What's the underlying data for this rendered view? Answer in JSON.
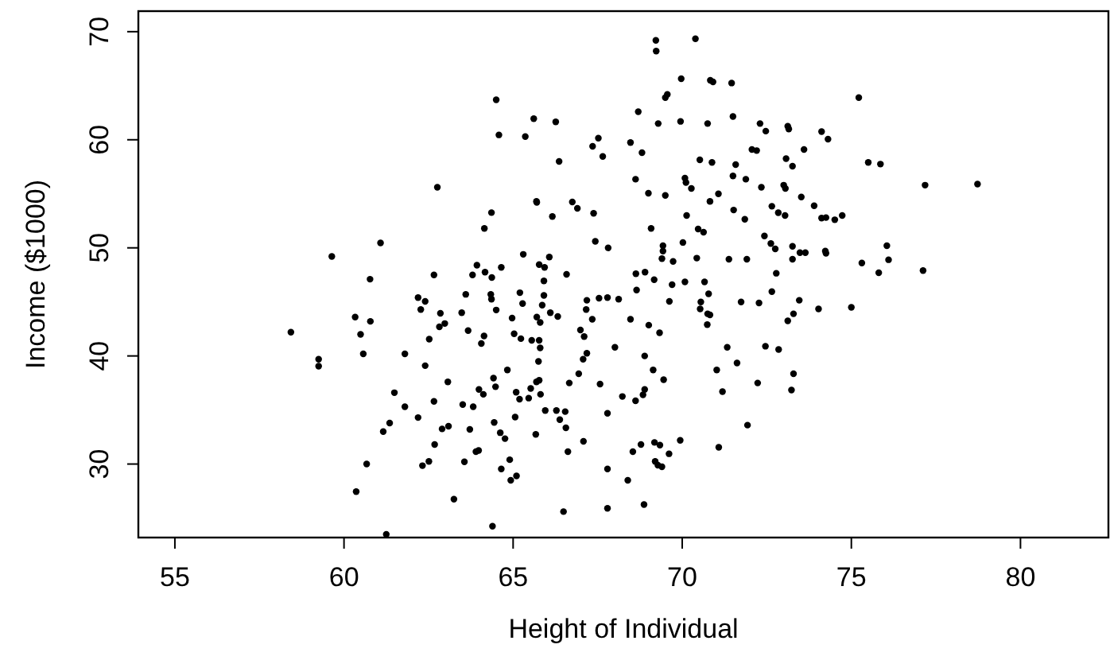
{
  "chart_data": {
    "type": "scatter",
    "xlabel": "Height of Individual",
    "ylabel": "Income ($1000)",
    "xlim": [
      53.92,
      82.6
    ],
    "ylim": [
      23.2,
      71.9
    ],
    "xticks": [
      55,
      60,
      65,
      70,
      75,
      80
    ],
    "yticks": [
      30,
      40,
      50,
      60,
      70
    ],
    "grid": false,
    "marker": "circle",
    "series": [
      {
        "color": "#000000",
        "x": [
          58.43,
          59.25,
          59.25,
          59.64,
          61.08,
          60.77,
          60.33,
          60.78,
          60.49,
          60.57,
          61.8,
          61.49,
          61.8,
          61.16,
          61.35,
          60.67,
          60.36,
          61.25,
          62.76,
          64.36,
          64.15,
          62.66,
          65.3,
          63.93,
          63.8,
          64.17,
          64.37,
          64.65,
          63.6,
          64.34,
          64.36,
          65.2,
          65.28,
          64.5,
          62.19,
          62.4,
          62.27,
          62.85,
          63.48,
          62.82,
          62.98,
          63.67,
          64.14,
          64.06,
          64.97,
          65.03,
          65.23,
          62.52,
          62.4,
          63.07,
          64.42,
          64.83,
          63.99,
          64.12,
          64.48,
          65.09,
          65.19,
          62.66,
          63.51,
          63.82,
          62.19,
          62.9,
          63.09,
          63.72,
          64.44,
          64.62,
          64.76,
          65.06,
          62.68,
          63.98,
          63.9,
          62.51,
          62.32,
          63.56,
          64.65,
          64.9,
          64.93,
          65.1,
          63.25,
          64.39,
          69.22,
          69.23,
          70.39,
          69.97,
          70.83,
          70.91,
          71.46,
          64.5,
          69.56,
          69.5,
          68.7,
          65.61,
          66.26,
          64.58,
          65.36,
          69.29,
          69.95,
          70.75,
          71.5,
          72.3,
          72.47,
          73.12,
          73.15,
          67.35,
          67.52,
          67.65,
          68.47,
          68.81,
          66.36,
          70.52,
          70.88,
          71.58,
          71.5,
          71.88,
          72.06,
          72.2,
          73.07,
          73.26,
          68.62,
          70.08,
          70.11,
          70.27,
          69.0,
          69.5,
          71.07,
          70.82,
          72.34,
          73.0,
          73.05,
          65.69,
          65.7,
          66.75,
          66.9,
          66.16,
          67.38,
          70.13,
          71.52,
          71.85,
          72.65,
          72.84,
          73.04,
          72.43,
          72.62,
          72.75,
          73.26,
          73.26,
          69.08,
          70.47,
          70.63,
          70.02,
          67.43,
          67.81,
          69.43,
          69.43,
          69.4,
          69.73,
          70.43,
          71.38,
          71.91,
          72.78,
          65.77,
          65.93,
          66.07,
          65.91,
          66.58,
          68.63,
          68.9,
          69.17,
          69.7,
          70.08,
          70.66,
          65.91,
          65.86,
          66.1,
          66.32,
          65.7,
          65.8,
          67.18,
          67.16,
          67.34,
          67.54,
          67.79,
          68.12,
          68.47,
          69.01,
          69.33,
          68.65,
          69.62,
          70.78,
          70.55,
          70.53,
          70.75,
          70.82,
          70.74,
          71.74,
          72.27,
          72.65,
          73.12,
          73.29,
          66.99,
          67.1,
          65.77,
          65.8,
          65.75,
          65.77,
          65.69,
          65.81,
          65.52,
          65.55,
          65.46,
          65.95,
          66.28,
          66.54,
          66.38,
          66.56,
          65.67,
          66.62,
          67.08,
          66.66,
          66.94,
          67.07,
          67.18,
          67.57,
          68.01,
          67.79,
          68.89,
          69.14,
          69.45,
          68.89,
          68.84,
          68.62,
          68.23,
          67.79,
          67.79,
          66.49,
          68.39,
          68.54,
          68.78,
          69.18,
          69.34,
          69.61,
          69.2,
          69.28,
          69.4,
          69.94,
          68.87,
          71.08,
          71.93,
          71.02,
          71.19,
          71.33,
          71.62,
          72.23,
          72.46,
          72.85,
          73.23,
          73.29,
          75.22,
          74.12,
          74.31,
          73.6,
          75.5,
          75.86,
          77.18,
          78.73,
          73.52,
          73.9,
          74.12,
          74.25,
          74.51,
          74.73,
          73.48,
          73.64,
          74.23,
          74.25,
          76.05,
          76.1,
          75.31,
          75.81,
          77.12,
          73.46,
          74.03,
          75.0
        ],
        "values": [
          42.2,
          39.7,
          39.05,
          49.2,
          50.45,
          47.1,
          43.6,
          43.2,
          42.0,
          40.2,
          40.2,
          36.6,
          35.3,
          33.0,
          33.8,
          30.0,
          27.45,
          23.5,
          55.6,
          53.26,
          51.8,
          47.5,
          49.4,
          48.4,
          47.5,
          47.75,
          47.25,
          48.2,
          45.7,
          45.7,
          45.25,
          45.85,
          44.85,
          44.25,
          45.4,
          45.05,
          44.3,
          43.95,
          44.0,
          42.7,
          43.0,
          42.35,
          41.85,
          41.15,
          43.5,
          42.05,
          41.6,
          41.55,
          39.1,
          37.6,
          37.95,
          38.7,
          36.9,
          36.45,
          37.15,
          36.65,
          36.0,
          35.8,
          35.5,
          35.3,
          34.3,
          33.25,
          33.5,
          33.2,
          33.85,
          32.9,
          32.35,
          34.35,
          31.8,
          31.25,
          31.15,
          30.25,
          29.85,
          30.2,
          29.55,
          30.4,
          28.5,
          28.9,
          26.75,
          24.25,
          69.2,
          68.2,
          69.35,
          65.65,
          65.5,
          65.35,
          65.25,
          63.7,
          64.2,
          63.9,
          62.6,
          61.95,
          61.65,
          60.45,
          60.3,
          61.5,
          61.7,
          61.5,
          62.15,
          61.5,
          60.8,
          61.25,
          61.0,
          59.4,
          60.15,
          58.45,
          59.75,
          58.8,
          58.0,
          58.15,
          57.9,
          57.7,
          56.65,
          56.35,
          59.1,
          59.0,
          58.25,
          57.55,
          56.35,
          56.45,
          56.05,
          55.5,
          55.05,
          54.85,
          55.0,
          54.3,
          55.6,
          55.8,
          55.5,
          54.3,
          54.2,
          54.25,
          53.65,
          52.9,
          53.2,
          53.0,
          53.5,
          52.65,
          53.85,
          53.25,
          53.0,
          51.1,
          50.4,
          49.9,
          50.15,
          48.95,
          51.8,
          51.75,
          51.45,
          50.5,
          50.6,
          50.0,
          50.2,
          49.7,
          49.0,
          48.75,
          49.05,
          48.95,
          48.95,
          47.65,
          48.45,
          48.2,
          49.15,
          46.95,
          47.55,
          47.6,
          47.75,
          47.05,
          46.6,
          46.85,
          46.85,
          45.6,
          44.7,
          44.0,
          43.65,
          43.6,
          43.1,
          45.15,
          44.3,
          43.4,
          45.35,
          45.4,
          45.25,
          43.4,
          42.85,
          42.15,
          46.1,
          45.05,
          45.75,
          45.0,
          44.35,
          43.9,
          43.8,
          42.9,
          45.0,
          44.9,
          45.95,
          43.25,
          43.9,
          42.4,
          41.8,
          41.45,
          40.75,
          39.5,
          37.75,
          37.6,
          36.45,
          37.0,
          41.45,
          36.1,
          34.95,
          34.95,
          34.85,
          34.1,
          33.35,
          32.75,
          31.15,
          32.1,
          37.5,
          38.35,
          39.7,
          40.25,
          37.4,
          40.8,
          34.7,
          40.0,
          38.7,
          37.8,
          36.9,
          36.4,
          35.85,
          36.25,
          29.55,
          25.9,
          25.6,
          28.5,
          31.15,
          31.8,
          32.0,
          31.75,
          30.95,
          30.25,
          29.9,
          29.75,
          32.2,
          26.25,
          31.55,
          33.6,
          38.7,
          36.7,
          40.8,
          39.35,
          37.5,
          40.9,
          40.6,
          36.85,
          38.35,
          63.9,
          60.75,
          60.05,
          59.1,
          57.9,
          57.75,
          55.8,
          55.9,
          54.7,
          53.9,
          52.75,
          52.8,
          52.6,
          53.0,
          49.55,
          49.55,
          49.7,
          49.5,
          50.2,
          48.9,
          48.6,
          47.7,
          47.9,
          45.15,
          44.35,
          44.5
        ]
      }
    ]
  }
}
